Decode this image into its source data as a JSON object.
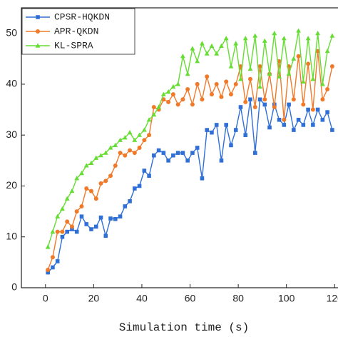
{
  "chart_data": {
    "type": "line",
    "x_label": "Simulation time (s)",
    "x": [
      1,
      3,
      5,
      7,
      9,
      11,
      13,
      15,
      17,
      19,
      21,
      23,
      25,
      27,
      29,
      31,
      33,
      35,
      37,
      39,
      41,
      43,
      45,
      47,
      49,
      51,
      53,
      55,
      57,
      59,
      61,
      63,
      65,
      67,
      69,
      71,
      73,
      75,
      77,
      79,
      81,
      83,
      85,
      87,
      89,
      91,
      93,
      95,
      97,
      99,
      101,
      103,
      105,
      107,
      109,
      111,
      113,
      115,
      117,
      119
    ],
    "series": [
      {
        "name": "CPSR-HQKDN",
        "color": "#2f6fd6",
        "marker": "square",
        "values": [
          3,
          4,
          5.2,
          10,
          11,
          11.5,
          11,
          14,
          12.5,
          11.5,
          12,
          13.8,
          10.2,
          13.6,
          13.5,
          14,
          16,
          17,
          19.5,
          20,
          23,
          22,
          26,
          27,
          26.5,
          25,
          26,
          26.5,
          26.5,
          25,
          26.5,
          27.5,
          21.5,
          31,
          30.5,
          32,
          25,
          32,
          28,
          31,
          35.5,
          30,
          37,
          26.5,
          37,
          36,
          31.5,
          36,
          33,
          32,
          36,
          31,
          33,
          32,
          35,
          32,
          35,
          33,
          34.5,
          31
        ]
      },
      {
        "name": "APR-QKDN",
        "color": "#f07a2a",
        "marker": "circle",
        "values": [
          3.5,
          6,
          11,
          11,
          13,
          12,
          15,
          16,
          19.5,
          19,
          17.5,
          20.5,
          21,
          22,
          24,
          26.5,
          26,
          27,
          26.5,
          27.5,
          29,
          30,
          35.5,
          35,
          37,
          36.5,
          38,
          36,
          37,
          39,
          36,
          40,
          37,
          41.5,
          38,
          40,
          37.5,
          40.5,
          38,
          40,
          43.5,
          36.5,
          41,
          35.5,
          43.5,
          37,
          42,
          35.5,
          44.5,
          33,
          43.5,
          37,
          45.5,
          36,
          44,
          35,
          46.5,
          37,
          39,
          43.5
        ]
      },
      {
        "name": "KL-SPRA",
        "color": "#66dd33",
        "marker": "triangle",
        "values": [
          8,
          11,
          14,
          15.5,
          17.5,
          19,
          21.5,
          22.5,
          24,
          24.5,
          25.5,
          26,
          26.5,
          27.5,
          28,
          29,
          29.5,
          30.5,
          29,
          30,
          31,
          33,
          34,
          35.5,
          38,
          38.5,
          39.5,
          40,
          45.5,
          42,
          47,
          44.5,
          48,
          46,
          47.5,
          46,
          47.5,
          49,
          43.5,
          48,
          41,
          49,
          43,
          49.5,
          39.5,
          48.5,
          42,
          50,
          41.5,
          49,
          42,
          45,
          50.5,
          40.5,
          49,
          41,
          50,
          40,
          46.5,
          49.5
        ]
      }
    ],
    "xlim": [
      -10,
      121.4
    ],
    "xticks": [
      0,
      20,
      40,
      60,
      80,
      100,
      120
    ],
    "ylim": [
      0,
      55
    ],
    "yticks": [
      0,
      10,
      20,
      30,
      40,
      50
    ]
  }
}
